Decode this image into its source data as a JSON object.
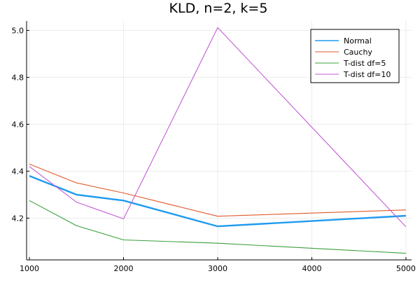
{
  "chart_data": {
    "type": "line",
    "title": "KLD, n=2, k=5",
    "xlabel": "",
    "ylabel": "",
    "xlim": [
      970,
      5060
    ],
    "ylim": [
      4.022,
      5.04
    ],
    "xticks": [
      1000,
      2000,
      3000,
      4000,
      5000
    ],
    "yticks": [
      4.2,
      4.4,
      4.6,
      4.8,
      5.0
    ],
    "xtick_labels": [
      "1000",
      "2000",
      "3000",
      "4000",
      "5000"
    ],
    "ytick_labels": [
      "4.2",
      "4.4",
      "4.6",
      "4.8",
      "5.0"
    ],
    "grid": true,
    "legend_position": "top-right",
    "series": [
      {
        "name": "Normal",
        "color": "#1f9bf0",
        "bold": true,
        "x": [
          1000,
          1500,
          2000,
          3000,
          5000
        ],
        "y": [
          4.38,
          4.3,
          4.275,
          4.165,
          4.21
        ]
      },
      {
        "name": "Cauchy",
        "color": "#e05a2b",
        "bold": false,
        "x": [
          1000,
          1500,
          2000,
          3000,
          5000
        ],
        "y": [
          4.43,
          4.35,
          4.307,
          4.208,
          4.235
        ]
      },
      {
        "name": "T-dist df=5",
        "color": "#3aa03a",
        "bold": false,
        "x": [
          1000,
          1500,
          2000,
          3000,
          5000
        ],
        "y": [
          4.275,
          4.168,
          4.107,
          4.093,
          4.05
        ]
      },
      {
        "name": "T-dist df=10",
        "color": "#c35bd6",
        "bold": false,
        "x": [
          1000,
          1500,
          2000,
          3000,
          5000
        ],
        "y": [
          4.42,
          4.268,
          4.197,
          5.012,
          4.163
        ]
      }
    ]
  }
}
